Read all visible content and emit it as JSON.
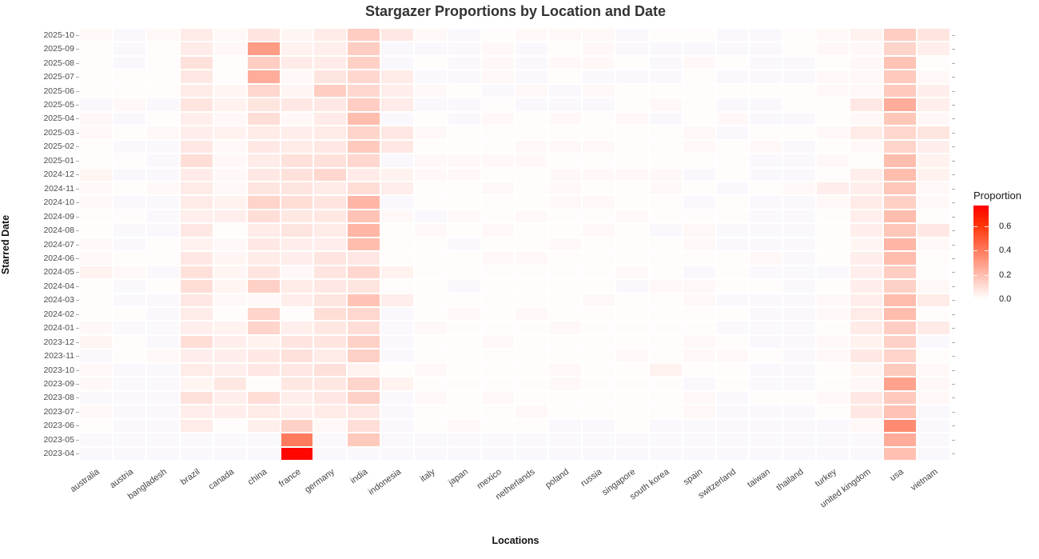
{
  "title": "Stargazer Proportions by Location and Date",
  "x_axis_label": "Locations",
  "y_axis_label": "Starred Date",
  "legend": {
    "title": "Proportion",
    "tick_labels": [
      "0.6",
      "0.4",
      "0.2",
      "0.0"
    ],
    "tick_values": [
      0.6,
      0.4,
      0.2,
      0.0
    ],
    "max_value": 0.77,
    "high_color": "#FF0000",
    "low_color": "#FFFFFF",
    "zero_cell_color": "#FAF8FD"
  },
  "chart_data": {
    "type": "heatmap",
    "title": "Stargazer Proportions by Location and Date",
    "xlabel": "Locations",
    "ylabel": "Starred Date",
    "legend_title": "Proportion",
    "color_scale": {
      "low": "#FFFFFF",
      "high": "#FF0000",
      "range": [
        0.0,
        0.77
      ]
    },
    "columns": [
      "australia",
      "austria",
      "bangladesh",
      "brazil",
      "canada",
      "china",
      "france",
      "germany",
      "india",
      "indonesia",
      "italy",
      "japan",
      "mexico",
      "netherlands",
      "poland",
      "russia",
      "singapore",
      "south korea",
      "spain",
      "switzerland",
      "taiwan",
      "thailand",
      "turkey",
      "united kingdom",
      "usa",
      "vietnam"
    ],
    "rows": [
      "2025-10",
      "2025-09",
      "2025-08",
      "2025-07",
      "2025-06",
      "2025-05",
      "2025-04",
      "2025-03",
      "2025-02",
      "2025-01",
      "2024-12",
      "2024-11",
      "2024-10",
      "2024-09",
      "2024-08",
      "2024-07",
      "2024-06",
      "2024-05",
      "2024-04",
      "2024-03",
      "2024-02",
      "2024-01",
      "2023-12",
      "2023-11",
      "2023-10",
      "2023-09",
      "2023-08",
      "2023-07",
      "2023-06",
      "2023-05",
      "2023-04"
    ],
    "values": [
      [
        0.02,
        0,
        0.02,
        0.06,
        0.02,
        0.08,
        0.03,
        0.06,
        0.15,
        0.07,
        0.02,
        0,
        0.01,
        0.02,
        0.02,
        0.02,
        0,
        0.01,
        0.01,
        0,
        0,
        0.01,
        0.02,
        0.04,
        0.15,
        0.08
      ],
      [
        0.01,
        0,
        0.01,
        0.06,
        0.02,
        0.3,
        0.04,
        0.05,
        0.15,
        0,
        0,
        0,
        0.02,
        0,
        0.01,
        0.02,
        0,
        0,
        0,
        0,
        0,
        0.01,
        0.02,
        0.02,
        0.13,
        0.05
      ],
      [
        0.01,
        0,
        0.01,
        0.09,
        0.01,
        0.15,
        0.06,
        0.06,
        0.14,
        0,
        0.01,
        0,
        0.02,
        0,
        0.02,
        0.02,
        0.01,
        0,
        0.02,
        0.01,
        0,
        0,
        0.01,
        0.02,
        0.18,
        0.01
      ],
      [
        0.01,
        0.01,
        0.01,
        0.07,
        0.01,
        0.25,
        0.02,
        0.08,
        0.12,
        0.06,
        0,
        0,
        0.02,
        0,
        0.01,
        0,
        0,
        0,
        0.01,
        0,
        0,
        0,
        0.02,
        0.02,
        0.16,
        0.02
      ],
      [
        0.01,
        0.01,
        0.01,
        0.06,
        0.03,
        0.12,
        0.03,
        0.15,
        0.12,
        0.05,
        0.02,
        0.01,
        0,
        0.02,
        0,
        0.02,
        0.01,
        0.01,
        0.01,
        0.01,
        0.01,
        0.01,
        0.02,
        0.02,
        0.16,
        0.05
      ],
      [
        0,
        0.02,
        0,
        0.08,
        0.04,
        0.08,
        0.07,
        0.07,
        0.15,
        0.06,
        0,
        0,
        0.01,
        0,
        0,
        0,
        0.01,
        0.02,
        0.01,
        0,
        0,
        0.01,
        0.01,
        0.07,
        0.25,
        0.05
      ],
      [
        0.02,
        0,
        0.01,
        0.05,
        0.02,
        0.1,
        0.02,
        0.06,
        0.2,
        0,
        0.01,
        0,
        0.02,
        0.01,
        0.02,
        0.01,
        0.02,
        0,
        0.01,
        0.02,
        0,
        0,
        0.01,
        0.02,
        0.17,
        0.02
      ],
      [
        0.02,
        0.01,
        0.02,
        0.05,
        0.04,
        0.06,
        0.05,
        0.06,
        0.13,
        0.07,
        0.02,
        0.01,
        0.01,
        0.01,
        0.01,
        0.01,
        0.01,
        0.01,
        0.02,
        0,
        0.01,
        0.01,
        0.02,
        0.06,
        0.12,
        0.08
      ],
      [
        0.01,
        0,
        0,
        0.07,
        0.02,
        0.07,
        0.06,
        0.07,
        0.16,
        0.07,
        0.01,
        0.01,
        0.01,
        0.02,
        0.02,
        0.02,
        0.01,
        0.01,
        0.02,
        0.01,
        0.02,
        0,
        0.01,
        0.02,
        0.13,
        0.05
      ],
      [
        0.01,
        0.01,
        0,
        0.1,
        0.02,
        0.06,
        0.09,
        0.09,
        0.12,
        0,
        0.02,
        0.02,
        0.02,
        0.02,
        0.01,
        0.01,
        0.01,
        0.01,
        0.01,
        0.01,
        0,
        0,
        0.02,
        0.01,
        0.2,
        0.04
      ],
      [
        0.03,
        0,
        0,
        0.06,
        0.02,
        0.07,
        0.09,
        0.12,
        0.06,
        0.04,
        0.02,
        0.02,
        0.01,
        0.01,
        0.02,
        0.02,
        0.02,
        0.02,
        0,
        0.01,
        0,
        0,
        0.01,
        0.05,
        0.2,
        0.04
      ],
      [
        0.02,
        0.01,
        0.02,
        0.06,
        0.02,
        0.08,
        0.08,
        0.06,
        0.1,
        0.05,
        0.01,
        0.01,
        0.02,
        0.01,
        0.02,
        0.01,
        0.01,
        0.02,
        0.01,
        0,
        0.01,
        0.02,
        0.05,
        0.05,
        0.17,
        0.02
      ],
      [
        0.02,
        0,
        0,
        0.06,
        0.04,
        0.13,
        0.1,
        0.08,
        0.22,
        0,
        0.01,
        0.01,
        0.01,
        0.01,
        0.02,
        0.02,
        0.01,
        0.01,
        0,
        0.01,
        0,
        0,
        0.02,
        0.06,
        0.14,
        0.02
      ],
      [
        0.01,
        0.01,
        0,
        0.05,
        0.05,
        0.1,
        0.07,
        0.07,
        0.18,
        0.02,
        0,
        0.02,
        0.01,
        0.02,
        0.01,
        0.01,
        0.02,
        0.01,
        0.01,
        0.01,
        0,
        0,
        0.01,
        0.05,
        0.2,
        0.01
      ],
      [
        0.01,
        0,
        0,
        0.07,
        0.01,
        0.06,
        0.08,
        0.06,
        0.22,
        0.01,
        0.02,
        0.01,
        0.02,
        0.01,
        0.01,
        0.02,
        0.01,
        0,
        0.02,
        0,
        0,
        0,
        0.01,
        0.05,
        0.17,
        0.07
      ],
      [
        0.02,
        0,
        0.01,
        0.04,
        0.02,
        0.07,
        0.05,
        0.05,
        0.2,
        0.01,
        0.01,
        0,
        0.01,
        0.01,
        0.02,
        0.01,
        0.01,
        0.01,
        0.02,
        0,
        0,
        0,
        0.01,
        0.03,
        0.22,
        0.02
      ],
      [
        0.02,
        0.01,
        0.01,
        0.07,
        0.03,
        0.06,
        0.05,
        0.08,
        0.07,
        0.01,
        0.01,
        0.01,
        0.02,
        0.02,
        0.01,
        0.01,
        0.01,
        0.01,
        0.01,
        0.01,
        0.02,
        0,
        0.01,
        0.05,
        0.2,
        0.01
      ],
      [
        0.04,
        0.02,
        0,
        0.09,
        0.03,
        0.08,
        0.02,
        0.08,
        0.12,
        0.04,
        0.01,
        0.01,
        0.01,
        0.01,
        0.01,
        0.01,
        0.02,
        0.01,
        0,
        0.01,
        0,
        0,
        0,
        0.05,
        0.15,
        0.01
      ],
      [
        0.01,
        0,
        0.01,
        0.1,
        0.03,
        0.14,
        0.06,
        0.07,
        0.08,
        0.01,
        0.01,
        0,
        0.01,
        0.01,
        0.01,
        0.01,
        0,
        0.02,
        0.02,
        0.01,
        0.01,
        0,
        0.01,
        0.05,
        0.14,
        0.02
      ],
      [
        0.01,
        0,
        0,
        0.07,
        0.02,
        0.02,
        0.05,
        0.08,
        0.18,
        0.05,
        0.01,
        0.01,
        0.01,
        0.01,
        0.01,
        0.02,
        0.01,
        0.01,
        0.02,
        0,
        0,
        0,
        0.02,
        0.05,
        0.2,
        0.06
      ],
      [
        0.01,
        0.01,
        0,
        0.06,
        0.01,
        0.13,
        0.01,
        0.1,
        0.12,
        0,
        0.01,
        0.02,
        0.01,
        0.02,
        0.01,
        0.01,
        0.01,
        0.01,
        0.01,
        0.01,
        0,
        0,
        0.02,
        0.06,
        0.2,
        0.01
      ],
      [
        0.02,
        0,
        0,
        0.05,
        0.04,
        0.13,
        0.05,
        0.07,
        0.1,
        0,
        0.02,
        0.01,
        0.01,
        0.01,
        0.02,
        0.01,
        0.01,
        0.01,
        0.01,
        0,
        0,
        0,
        0.01,
        0.06,
        0.15,
        0.06
      ],
      [
        0.03,
        0.01,
        0,
        0.1,
        0.05,
        0.04,
        0.08,
        0.08,
        0.14,
        0,
        0.01,
        0.01,
        0.02,
        0.01,
        0.01,
        0.01,
        0.01,
        0.01,
        0.02,
        0.01,
        0,
        0,
        0.02,
        0.04,
        0.14,
        0
      ],
      [
        0,
        0.01,
        0.02,
        0.05,
        0.05,
        0.07,
        0.09,
        0.06,
        0.14,
        0,
        0.01,
        0.01,
        0.01,
        0.01,
        0.01,
        0.01,
        0.02,
        0.01,
        0.02,
        0.02,
        0.01,
        0,
        0.02,
        0.07,
        0.13,
        0.01
      ],
      [
        0.02,
        0,
        0,
        0.06,
        0.05,
        0.07,
        0.07,
        0.09,
        0.04,
        0.01,
        0.02,
        0.01,
        0.01,
        0.01,
        0.02,
        0.01,
        0.01,
        0.04,
        0.01,
        0.01,
        0,
        0,
        0.01,
        0.03,
        0.16,
        0.02
      ],
      [
        0.02,
        0,
        0,
        0.03,
        0.07,
        0.01,
        0.07,
        0.07,
        0.13,
        0.04,
        0.01,
        0.01,
        0.01,
        0.01,
        0.02,
        0.01,
        0.01,
        0.01,
        0,
        0.01,
        0,
        0,
        0.01,
        0.02,
        0.28,
        0.02
      ],
      [
        0,
        0,
        0,
        0.09,
        0.05,
        0.1,
        0.05,
        0.07,
        0.14,
        0,
        0.02,
        0.01,
        0.02,
        0.01,
        0.01,
        0.01,
        0.01,
        0.01,
        0.02,
        0,
        0.01,
        0.01,
        0.02,
        0.07,
        0.16,
        0.02
      ],
      [
        0.02,
        0,
        0,
        0.05,
        0.05,
        0.06,
        0.05,
        0.06,
        0.07,
        0,
        0.01,
        0.01,
        0.01,
        0.02,
        0.01,
        0.01,
        0.01,
        0.01,
        0.02,
        0,
        0,
        0,
        0.01,
        0.07,
        0.18,
        0
      ],
      [
        0.01,
        0,
        0,
        0.06,
        0.01,
        0.05,
        0.14,
        0.02,
        0.1,
        0,
        0.01,
        0.02,
        0.01,
        0.01,
        0,
        0,
        0.01,
        0,
        0,
        0,
        0,
        0,
        0,
        0.02,
        0.35,
        0
      ],
      [
        0,
        0,
        0,
        0,
        0,
        0,
        0.4,
        0,
        0.16,
        0,
        0,
        0,
        0,
        0,
        0,
        0,
        0,
        0,
        0,
        0,
        0,
        0,
        0,
        0,
        0.25,
        0
      ],
      [
        0,
        0,
        0,
        0,
        0,
        0,
        0.75,
        0,
        0,
        0,
        0,
        0,
        0,
        0,
        0,
        0,
        0,
        0,
        0,
        0,
        0,
        0,
        0,
        0,
        0.19,
        0
      ]
    ]
  }
}
